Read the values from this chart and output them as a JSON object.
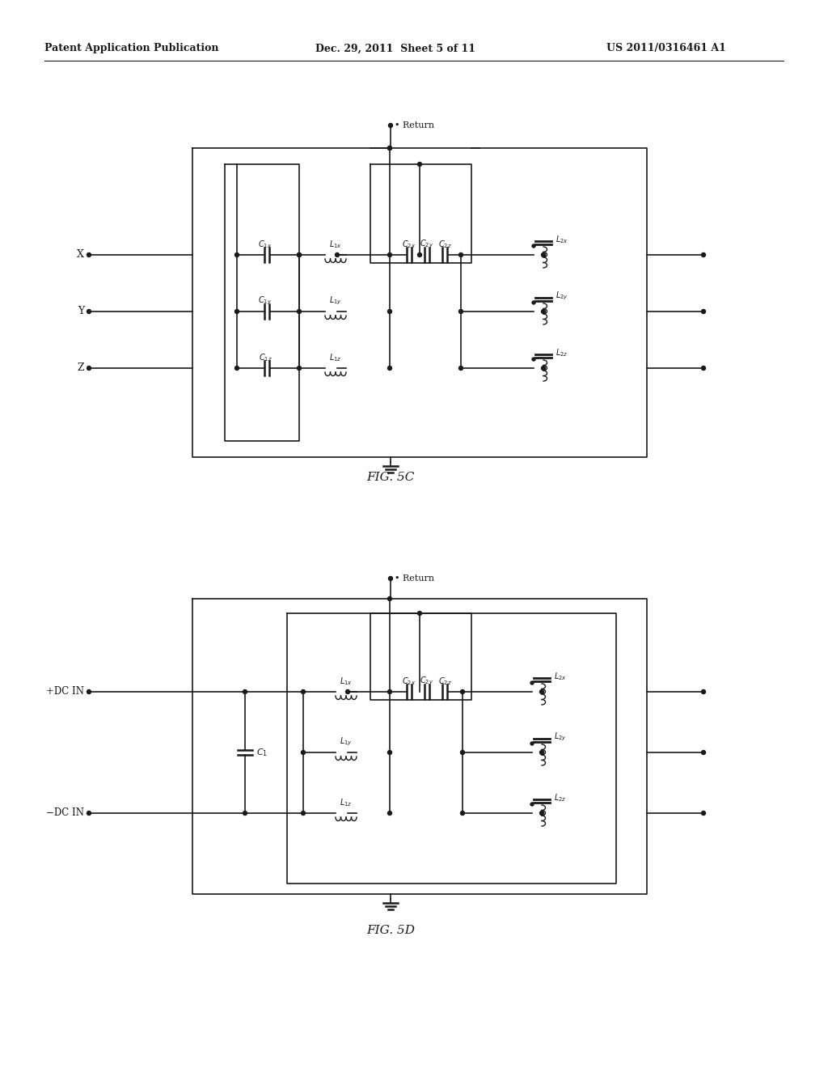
{
  "bg_color": "#ffffff",
  "line_color": "#1a1a1a",
  "header_left": "Patent Application Publication",
  "header_mid": "Dec. 29, 2011  Sheet 5 of 11",
  "header_right": "US 2011/0316461 A1",
  "fig5c_label": "FIG. 5C",
  "fig5d_label": "FIG. 5D"
}
